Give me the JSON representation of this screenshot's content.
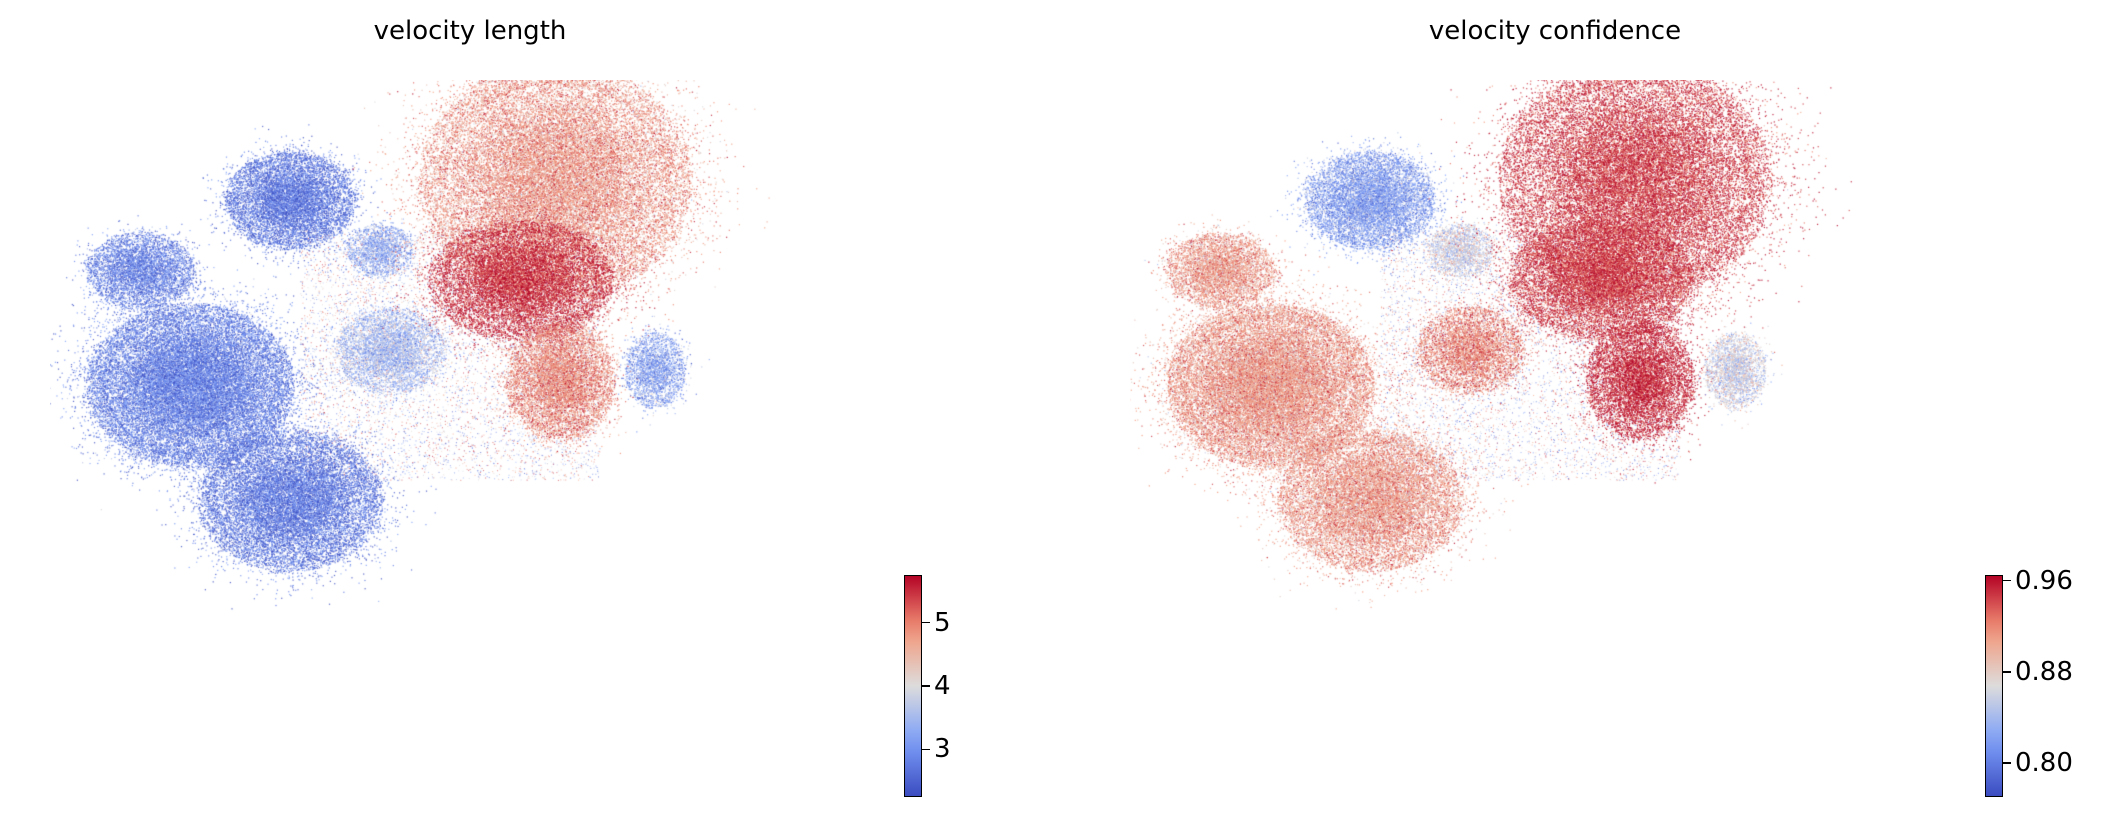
{
  "chart_data": [
    {
      "type": "scatter",
      "title": "velocity length",
      "xlabel": "",
      "ylabel": "",
      "axes_visible": false,
      "grid": false,
      "colormap": "coolwarm",
      "colorbar": {
        "location": "bottom-right",
        "range": [
          2.25,
          5.75
        ],
        "ticks": [
          3,
          4,
          5
        ],
        "tick_labels": [
          "3",
          "4",
          "5"
        ]
      },
      "regions": [
        {
          "label": "left large cluster",
          "value": 2.8
        },
        {
          "label": "bottom cluster",
          "value": 2.7
        },
        {
          "label": "upper-left cluster",
          "value": 2.7
        },
        {
          "label": "small left-center cluster",
          "value": 3.3
        },
        {
          "label": "center small cluster",
          "value": 3.5
        },
        {
          "label": "top-right cluster (upper)",
          "value": 4.8
        },
        {
          "label": "top-right cluster (lower band)",
          "value": 5.6
        },
        {
          "label": "right lower cluster",
          "value": 4.9
        },
        {
          "label": "far right edge",
          "value": 3.2
        }
      ]
    },
    {
      "type": "scatter",
      "title": "velocity confidence",
      "xlabel": "",
      "ylabel": "",
      "axes_visible": false,
      "grid": false,
      "colormap": "coolwarm",
      "colorbar": {
        "location": "bottom-right",
        "range": [
          0.77,
          0.965
        ],
        "ticks": [
          0.8,
          0.88,
          0.96
        ],
        "tick_labels": [
          "0.80",
          "0.88",
          "0.96"
        ]
      },
      "regions": [
        {
          "label": "left large cluster",
          "value": 0.91
        },
        {
          "label": "bottom cluster",
          "value": 0.91
        },
        {
          "label": "upper-left cluster",
          "value": 0.82
        },
        {
          "label": "small left-center cluster",
          "value": 0.86
        },
        {
          "label": "center small cluster",
          "value": 0.92
        },
        {
          "label": "top-right cluster",
          "value": 0.95
        },
        {
          "label": "right lower cluster",
          "value": 0.96
        },
        {
          "label": "far right edge",
          "value": 0.86
        }
      ]
    }
  ]
}
